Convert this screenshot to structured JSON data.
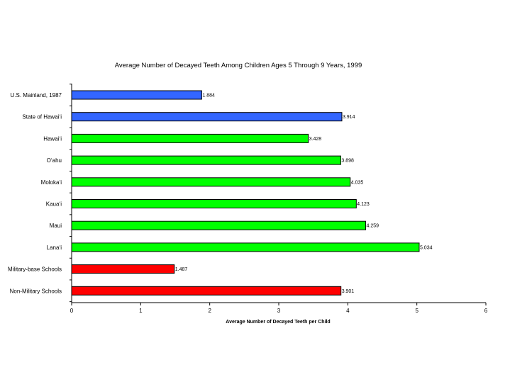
{
  "chart_data": {
    "type": "bar",
    "orientation": "horizontal",
    "title": "Average Number of Decayed Teeth Among Children Ages 5 Through 9 Years, 1999",
    "xlabel": "Average Number of Decayed Teeth per Child",
    "ylabel": "",
    "xlim": [
      0,
      6
    ],
    "xticks": [
      "0",
      "1",
      "2",
      "3",
      "4",
      "5",
      "6"
    ],
    "grid": false,
    "categories": [
      "U.S. Mainland, 1987",
      "State of Hawai‘i",
      "Hawai‘i",
      "O‘ahu",
      "Moloka‘i",
      "Kaua‘i",
      "Maui",
      "Lana‘i",
      "Military-base Schools",
      "Non-Military Schools"
    ],
    "values": [
      1.884,
      3.914,
      3.428,
      3.898,
      4.035,
      4.123,
      4.259,
      5.034,
      1.487,
      3.901
    ],
    "value_labels": [
      "1.884",
      "3.914",
      "3.428",
      "3.898",
      "4.035",
      "4.123",
      "4.259",
      "5.034",
      "1.487",
      "3.901"
    ],
    "colors": [
      "#3366ff",
      "#3366ff",
      "#00ff00",
      "#00ff00",
      "#00ff00",
      "#00ff00",
      "#00ff00",
      "#00ff00",
      "#ff0000",
      "#ff0000"
    ]
  }
}
